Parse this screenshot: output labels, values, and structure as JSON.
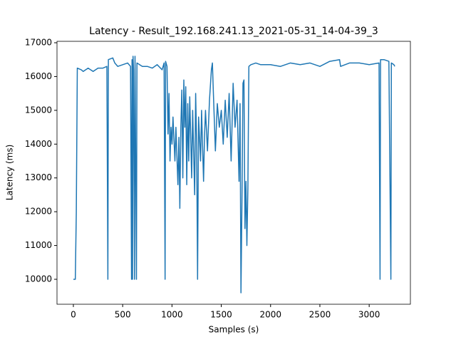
{
  "chart_data": {
    "type": "line",
    "title": "Latency - Result_192.168.241.13_2021-05-31_14-04-39_3",
    "x_label": "Samples  (s)",
    "y_label": "Latency (ms)",
    "color": "#1f77b4",
    "x": [
      0,
      20,
      30,
      40,
      80,
      100,
      150,
      200,
      250,
      300,
      340,
      350,
      355,
      400,
      420,
      450,
      500,
      550,
      580,
      590,
      595,
      600,
      605,
      610,
      620,
      625,
      640,
      645,
      700,
      750,
      800,
      850,
      900,
      920,
      930,
      935,
      950,
      960,
      970,
      980,
      990,
      1000,
      1010,
      1030,
      1040,
      1060,
      1070,
      1080,
      1090,
      1100,
      1110,
      1120,
      1130,
      1140,
      1150,
      1160,
      1170,
      1180,
      1200,
      1210,
      1230,
      1240,
      1250,
      1260,
      1270,
      1290,
      1300,
      1320,
      1330,
      1340,
      1360,
      1380,
      1400,
      1410,
      1420,
      1440,
      1460,
      1480,
      1500,
      1520,
      1540,
      1560,
      1580,
      1600,
      1620,
      1640,
      1660,
      1680,
      1690,
      1700,
      1710,
      1720,
      1730,
      1740,
      1750,
      1760,
      1770,
      1780,
      1800,
      1850,
      1900,
      2000,
      2100,
      2200,
      2300,
      2400,
      2500,
      2600,
      2700,
      2710,
      2800,
      2900,
      3000,
      3100,
      3110,
      3115,
      3150,
      3200,
      3220,
      3225,
      3250,
      3260
    ],
    "values": [
      10000,
      10000,
      12000,
      16250,
      16200,
      16150,
      16250,
      16150,
      16250,
      16250,
      16300,
      10000,
      16500,
      16550,
      16400,
      16300,
      16350,
      16400,
      16300,
      10000,
      16500,
      10000,
      16600,
      16200,
      10000,
      16600,
      10000,
      16400,
      16300,
      16300,
      16250,
      16350,
      16200,
      16400,
      10000,
      16450,
      16300,
      14300,
      15500,
      13500,
      14500,
      14000,
      14800,
      13500,
      14500,
      12800,
      14200,
      12100,
      14500,
      15600,
      13000,
      15900,
      14500,
      15700,
      12800,
      15200,
      13500,
      15400,
      13000,
      15000,
      12500,
      15500,
      14000,
      10000,
      14800,
      13500,
      15000,
      12900,
      14200,
      15000,
      13800,
      15300,
      16200,
      16400,
      15500,
      13800,
      15200,
      14500,
      15000,
      14000,
      15300,
      14200,
      15500,
      13500,
      15800,
      14500,
      15300,
      12900,
      15200,
      9600,
      12300,
      15800,
      15900,
      11500,
      12900,
      11000,
      12700,
      16300,
      16350,
      16400,
      16350,
      16350,
      16300,
      16400,
      16350,
      16400,
      16300,
      16450,
      16500,
      16300,
      16400,
      16400,
      16350,
      16400,
      10000,
      16500,
      16500,
      16450,
      10000,
      16400,
      16350,
      16300
    ],
    "xlim": [
      -166,
      3418
    ],
    "ylim": [
      9262,
      17042
    ],
    "xticks": [
      0,
      500,
      1000,
      1500,
      2000,
      2500,
      3000
    ],
    "yticks": [
      10000,
      11000,
      12000,
      13000,
      14000,
      15000,
      16000,
      17000
    ]
  }
}
